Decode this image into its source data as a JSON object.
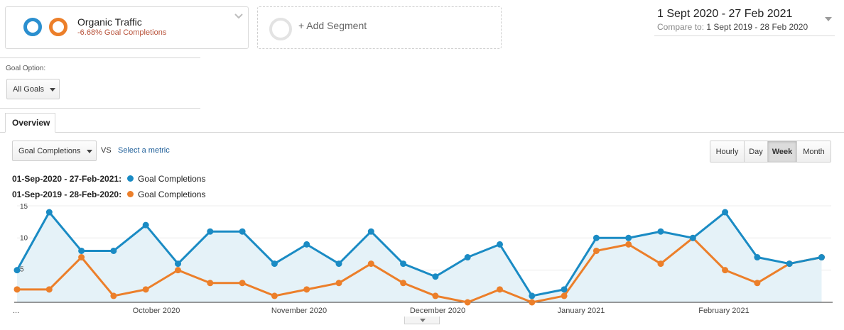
{
  "segment": {
    "name": "Organic Traffic",
    "subtitle": "-6.68% Goal Completions"
  },
  "add_segment": {
    "label": "+ Add Segment"
  },
  "date_range": {
    "main": "1 Sept 2020 - 27 Feb 2021",
    "compare_label": "Compare to:",
    "compare_value": "1 Sept 2019 - 28 Feb 2020"
  },
  "goal_option": {
    "label": "Goal Option:",
    "value": "All Goals"
  },
  "tabs": [
    {
      "label": "Overview",
      "active": true
    }
  ],
  "metric": {
    "value": "Goal Completions",
    "vs": "VS",
    "select_label": "Select a metric"
  },
  "granularity": {
    "options": [
      "Hourly",
      "Day",
      "Week",
      "Month"
    ],
    "active": "Week"
  },
  "legend": [
    {
      "range": "01-Sep-2020 - 27-Feb-2021:",
      "metric": "Goal Completions",
      "color": "#1a8bc4"
    },
    {
      "range": "01-Sep-2019 - 28-Feb-2020:",
      "metric": "Goal Completions",
      "color": "#ec7f2a"
    }
  ],
  "colors": {
    "current": "#1a8bc4",
    "previous": "#ec7f2a",
    "area_fill": "#e5f2f8",
    "segment_ring_current": "#2b8fcf",
    "segment_ring_previous": "#ec7f2a"
  },
  "chart_data": {
    "type": "line",
    "yticks": [
      5,
      10,
      15
    ],
    "ylim": [
      0,
      15
    ],
    "x_tick_labels": [
      "...",
      "October 2020",
      "November 2020",
      "December 2020",
      "January 2021",
      "February 2021"
    ],
    "series": [
      {
        "name": "01-Sep-2020 - 27-Feb-2021: Goal Completions",
        "values": [
          5,
          14,
          8,
          8,
          12,
          6,
          11,
          11,
          6,
          9,
          6,
          11,
          6,
          4,
          7,
          9,
          1,
          2,
          10,
          10,
          11,
          10,
          14,
          7,
          6,
          7
        ]
      },
      {
        "name": "01-Sep-2019 - 28-Feb-2020: Goal Completions",
        "values": [
          2,
          2,
          7,
          1,
          2,
          5,
          3,
          3,
          1,
          2,
          3,
          6,
          3,
          1,
          0,
          2,
          0,
          1,
          8,
          9,
          6,
          10,
          5,
          3,
          6,
          7
        ]
      }
    ]
  }
}
